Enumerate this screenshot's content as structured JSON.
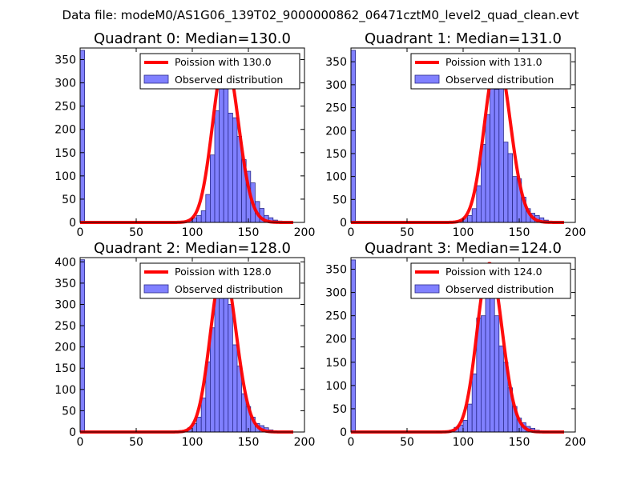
{
  "figure_title": "Data file: modeM0/AS1G06_139T02_9000000862_06471cztM0_level2_quad_clean.evt",
  "colors": {
    "bar_fill": "#8080ff",
    "bar_edge": "#2a2a8a",
    "poisson_line": "#ff0000",
    "axis": "#000000",
    "legend_edge": "#000000",
    "background": "#ffffff"
  },
  "chart_data": [
    {
      "type": "bar",
      "title": "Quadrant 0: Median=130.0",
      "xlim": [
        0,
        200
      ],
      "ylim": [
        0,
        375
      ],
      "xticks": [
        0,
        50,
        100,
        150,
        200
      ],
      "yticks": [
        0,
        50,
        100,
        150,
        200,
        250,
        300,
        350
      ],
      "bin_width": 4,
      "zero_bin": 370,
      "bins": [
        [
          80,
          1
        ],
        [
          88,
          2
        ],
        [
          92,
          3
        ],
        [
          96,
          5
        ],
        [
          100,
          10
        ],
        [
          104,
          15
        ],
        [
          108,
          25
        ],
        [
          112,
          60
        ],
        [
          116,
          145
        ],
        [
          120,
          240
        ],
        [
          124,
          335
        ],
        [
          128,
          295
        ],
        [
          132,
          235
        ],
        [
          136,
          225
        ],
        [
          140,
          185
        ],
        [
          144,
          135
        ],
        [
          148,
          110
        ],
        [
          152,
          85
        ],
        [
          156,
          45
        ],
        [
          160,
          30
        ],
        [
          164,
          15
        ],
        [
          168,
          10
        ],
        [
          172,
          5
        ],
        [
          176,
          3
        ],
        [
          180,
          1
        ]
      ],
      "poisson_mean": 130.0,
      "poisson_peak": 355,
      "legend": [
        "Poission with 130.0",
        "Observed distribution"
      ]
    },
    {
      "type": "bar",
      "title": "Quadrant 1: Median=131.0",
      "xlim": [
        0,
        200
      ],
      "ylim": [
        0,
        380
      ],
      "xticks": [
        0,
        50,
        100,
        150,
        200
      ],
      "yticks": [
        0,
        50,
        100,
        150,
        200,
        250,
        300,
        350
      ],
      "bin_width": 4,
      "zero_bin": 375,
      "bins": [
        [
          84,
          1
        ],
        [
          92,
          2
        ],
        [
          96,
          5
        ],
        [
          100,
          10
        ],
        [
          104,
          15
        ],
        [
          108,
          30
        ],
        [
          112,
          80
        ],
        [
          116,
          170
        ],
        [
          120,
          235
        ],
        [
          124,
          330
        ],
        [
          128,
          290
        ],
        [
          132,
          300
        ],
        [
          136,
          175
        ],
        [
          140,
          150
        ],
        [
          144,
          100
        ],
        [
          148,
          95
        ],
        [
          152,
          55
        ],
        [
          156,
          30
        ],
        [
          160,
          20
        ],
        [
          164,
          15
        ],
        [
          168,
          10
        ],
        [
          172,
          5
        ],
        [
          176,
          2
        ],
        [
          180,
          1
        ]
      ],
      "poisson_mean": 131.0,
      "poisson_peak": 360,
      "legend": [
        "Poission with 131.0",
        "Observed distribution"
      ]
    },
    {
      "type": "bar",
      "title": "Quadrant 2: Median=128.0",
      "xlim": [
        0,
        200
      ],
      "ylim": [
        0,
        410
      ],
      "xticks": [
        0,
        50,
        100,
        150,
        200
      ],
      "yticks": [
        0,
        50,
        100,
        150,
        200,
        250,
        300,
        350,
        400
      ],
      "bin_width": 4,
      "zero_bin": 405,
      "bins": [
        [
          84,
          1
        ],
        [
          88,
          2
        ],
        [
          92,
          3
        ],
        [
          96,
          10
        ],
        [
          100,
          20
        ],
        [
          104,
          35
        ],
        [
          108,
          80
        ],
        [
          112,
          165
        ],
        [
          116,
          245
        ],
        [
          120,
          335
        ],
        [
          124,
          345
        ],
        [
          128,
          335
        ],
        [
          132,
          300
        ],
        [
          136,
          205
        ],
        [
          140,
          155
        ],
        [
          144,
          90
        ],
        [
          148,
          60
        ],
        [
          152,
          35
        ],
        [
          156,
          20
        ],
        [
          160,
          15
        ],
        [
          164,
          10
        ],
        [
          168,
          5
        ],
        [
          172,
          2
        ]
      ],
      "poisson_mean": 128.0,
      "poisson_peak": 390,
      "legend": [
        "Poission with 128.0",
        "Observed distribution"
      ]
    },
    {
      "type": "bar",
      "title": "Quadrant 3: Median=124.0",
      "xlim": [
        0,
        200
      ],
      "ylim": [
        0,
        375
      ],
      "xticks": [
        0,
        50,
        100,
        150,
        200
      ],
      "yticks": [
        0,
        50,
        100,
        150,
        200,
        250,
        300,
        350
      ],
      "bin_width": 4,
      "zero_bin": 370,
      "bins": [
        [
          76,
          1
        ],
        [
          84,
          2
        ],
        [
          88,
          4
        ],
        [
          92,
          10
        ],
        [
          96,
          15
        ],
        [
          100,
          25
        ],
        [
          104,
          60
        ],
        [
          108,
          125
        ],
        [
          112,
          245
        ],
        [
          116,
          250
        ],
        [
          120,
          350
        ],
        [
          124,
          335
        ],
        [
          128,
          250
        ],
        [
          132,
          185
        ],
        [
          136,
          150
        ],
        [
          140,
          95
        ],
        [
          144,
          55
        ],
        [
          148,
          30
        ],
        [
          152,
          20
        ],
        [
          156,
          12
        ],
        [
          160,
          8
        ],
        [
          164,
          4
        ],
        [
          168,
          2
        ],
        [
          172,
          1
        ]
      ],
      "poisson_mean": 124.0,
      "poisson_peak": 362,
      "legend": [
        "Poission with 124.0",
        "Observed distribution"
      ]
    }
  ]
}
